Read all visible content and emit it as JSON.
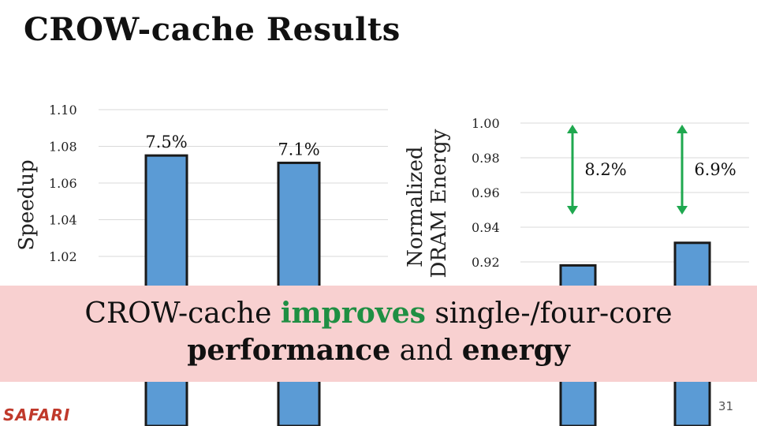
{
  "slide": {
    "title": "CROW-cache Results",
    "page_number": "31",
    "logo_text": "SAFARI"
  },
  "banner": {
    "line1_prefix": "CROW-cache ",
    "line1_highlight": "improves",
    "line1_suffix": " single-/four-core",
    "line2_bold1": "performance",
    "line2_mid": " and ",
    "line2_bold2": "energy"
  },
  "colors": {
    "bar_fill": "#5b9bd5",
    "bar_stroke": "#1a1a1a",
    "arrow": "#1fa84f",
    "grid": "#d9d9d9",
    "banner_bg": "#f8d0d0",
    "highlight": "#1f8f43"
  },
  "chart_data": [
    {
      "type": "bar",
      "ylabel": "Speedup",
      "yticks": [
        "1.02",
        "1.04",
        "1.06",
        "1.08",
        "1.10"
      ],
      "ytick_values": [
        1.02,
        1.04,
        1.06,
        1.08,
        1.1
      ],
      "ylim": [
        1.0,
        1.1
      ],
      "grid": true,
      "values": [
        1.075,
        1.071
      ],
      "data_labels": [
        "7.5%",
        "7.1%"
      ]
    },
    {
      "type": "bar",
      "ylabel_lines": [
        "Normalized",
        "DRAM Energy"
      ],
      "yticks": [
        "0.92",
        "0.94",
        "0.96",
        "0.98",
        "1.00"
      ],
      "ytick_values": [
        0.92,
        0.94,
        0.96,
        0.98,
        1.0
      ],
      "ylim": [
        0.9,
        1.0
      ],
      "grid": true,
      "values": [
        0.918,
        0.931
      ],
      "arrow_labels": [
        "8.2%",
        "6.9%"
      ]
    }
  ]
}
